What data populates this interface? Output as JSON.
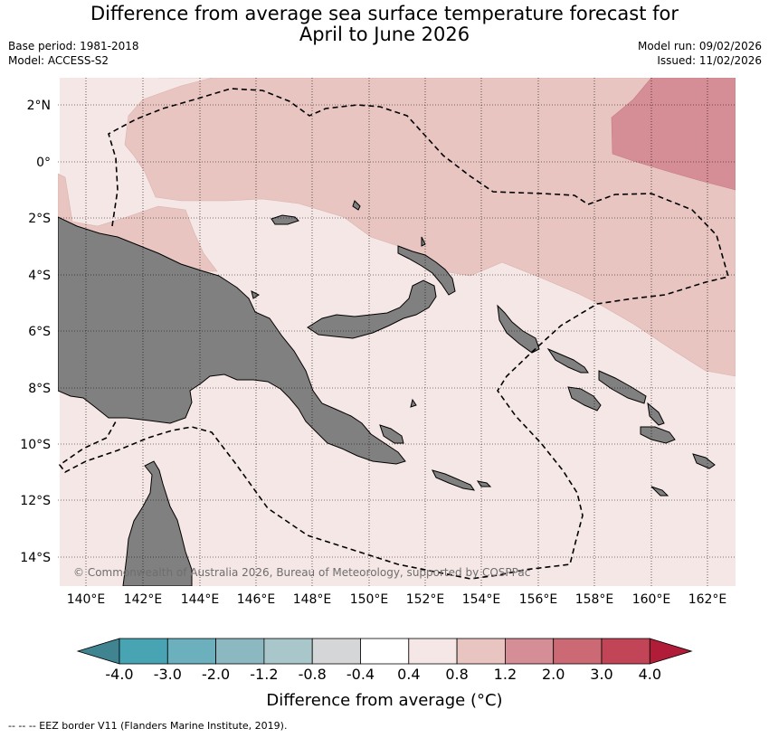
{
  "title_line1": "Difference from average sea surface temperature forecast for",
  "title_line2": "April to June 2026",
  "base_period": "Base period: 1981-2018",
  "model": "Model: ACCESS-S2",
  "model_run": "Model run: 09/02/2026",
  "issued": "Issued: 11/02/2026",
  "copyright": "© Commonwealth of Australia 2026, Bureau of Meteorology, supported by COSPPac",
  "map": {
    "lon_labels": [
      "140°E",
      "142°E",
      "144°E",
      "146°E",
      "148°E",
      "150°E",
      "152°E",
      "154°E",
      "156°E",
      "158°E",
      "160°E",
      "162°E"
    ],
    "lat_labels": [
      "2°N",
      "0°",
      "2°S",
      "4°S",
      "6°S",
      "8°S",
      "10°S",
      "12°S",
      "14°S"
    ],
    "land_color": "#808080",
    "eez_style": "dashed"
  },
  "colorbar": {
    "title": "Difference from average (°C)",
    "ticks": [
      "-4.0",
      "-3.0",
      "-2.0",
      "-1.2",
      "-0.8",
      "-0.4",
      "0.4",
      "0.8",
      "1.2",
      "2.0",
      "3.0",
      "4.0"
    ],
    "colors": [
      "#3f8490",
      "#48a3b3",
      "#6cafbd",
      "#8cb8c2",
      "#a9c7cb",
      "#d5d6d7",
      "#ffffff",
      "#f5e7e5",
      "#e8c5c1",
      "#d68e96",
      "#cb6a75",
      "#c14556",
      "#b11c39"
    ]
  },
  "footnote": "--  --  -- EEZ border V11 (Flanders Marine Institute, 2019)."
}
